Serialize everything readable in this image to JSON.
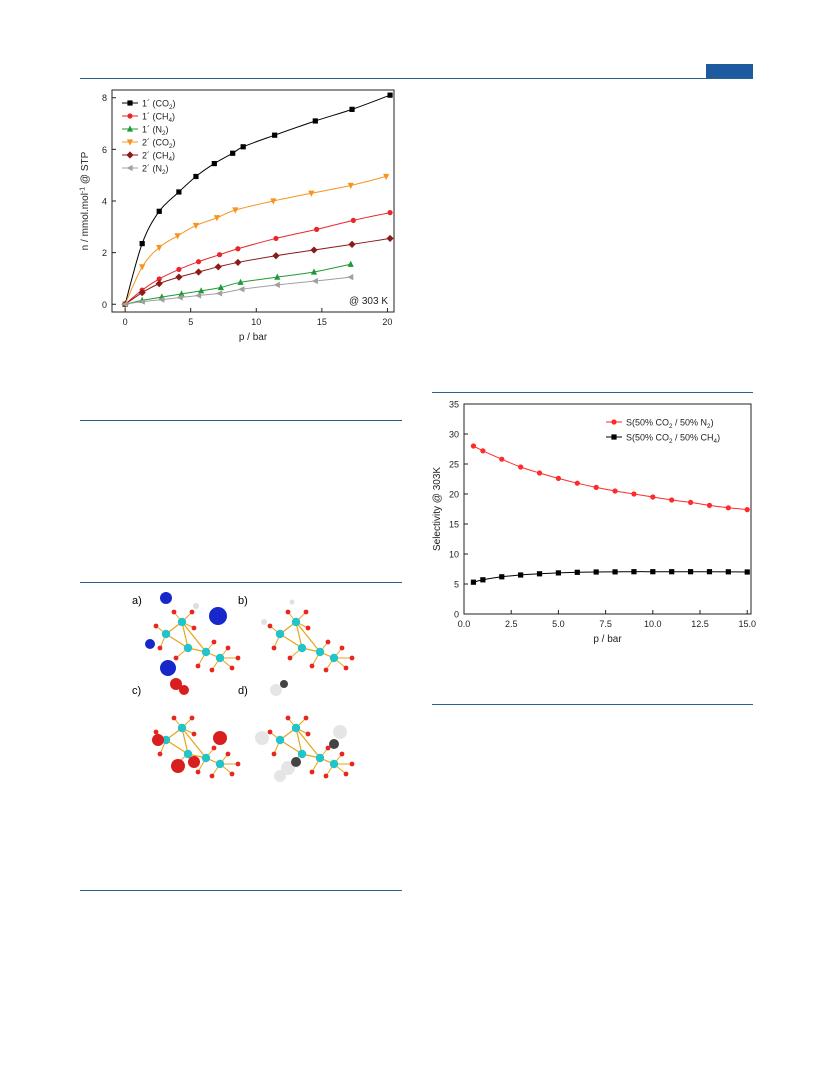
{
  "colors": {
    "rule": "#2f5f8f",
    "tab": "#1d5aa0"
  },
  "chart_data": [
    {
      "type": "line",
      "xlabel": "p / bar",
      "ylabel": "n / mmol.mol⁻¹ @ STP",
      "xlim": [
        -1,
        20.5
      ],
      "ylim": [
        -0.3,
        8.3
      ],
      "xticks": [
        0,
        5,
        10,
        15,
        20
      ],
      "yticks": [
        0,
        2,
        4,
        6,
        8
      ],
      "annotation": "@ 303 K",
      "legend_position": "top-left",
      "series": [
        {
          "name": "1´ (CO₂)",
          "color": "#000000",
          "marker": "square",
          "x": [
            0,
            1.3,
            2.6,
            4.1,
            5.4,
            6.8,
            8.2,
            9.0,
            11.4,
            14.5,
            17.3,
            20.2
          ],
          "y": [
            0,
            2.35,
            3.6,
            4.35,
            4.95,
            5.45,
            5.85,
            6.1,
            6.55,
            7.1,
            7.55,
            8.1
          ]
        },
        {
          "name": "1´ (CH₄)",
          "color": "#e8272a",
          "marker": "circle",
          "x": [
            0,
            1.3,
            2.6,
            4.1,
            5.6,
            7.2,
            8.6,
            11.5,
            14.6,
            17.4,
            20.2
          ],
          "y": [
            0,
            0.55,
            0.98,
            1.35,
            1.65,
            1.92,
            2.15,
            2.55,
            2.9,
            3.25,
            3.55
          ]
        },
        {
          "name": "1´ (N₂)",
          "color": "#1f9b34",
          "marker": "triangle-up",
          "x": [
            0,
            1.3,
            2.8,
            4.3,
            5.8,
            7.3,
            8.8,
            11.6,
            14.4,
            17.2
          ],
          "y": [
            0,
            0.15,
            0.28,
            0.4,
            0.52,
            0.65,
            0.85,
            1.05,
            1.25,
            1.55
          ]
        },
        {
          "name": "2´ (CO₂)",
          "color": "#f7941d",
          "marker": "triangle-down",
          "x": [
            0,
            1.3,
            2.6,
            4.0,
            5.4,
            7.0,
            8.4,
            11.3,
            14.2,
            17.2,
            19.9
          ],
          "y": [
            0,
            1.45,
            2.2,
            2.65,
            3.05,
            3.35,
            3.65,
            4.0,
            4.3,
            4.6,
            4.95
          ]
        },
        {
          "name": "2´ (CH₄)",
          "color": "#8b1a1a",
          "marker": "diamond",
          "x": [
            0,
            1.3,
            2.6,
            4.1,
            5.6,
            7.1,
            8.6,
            11.5,
            14.4,
            17.3,
            20.2
          ],
          "y": [
            0,
            0.45,
            0.8,
            1.05,
            1.25,
            1.45,
            1.62,
            1.88,
            2.1,
            2.32,
            2.55
          ]
        },
        {
          "name": "2´ (N₂)",
          "color": "#a0a0a0",
          "marker": "triangle-left",
          "x": [
            0,
            1.3,
            2.8,
            4.2,
            5.6,
            7.2,
            8.9,
            11.6,
            14.5,
            17.2
          ],
          "y": [
            0,
            0.1,
            0.18,
            0.26,
            0.34,
            0.42,
            0.58,
            0.75,
            0.9,
            1.05
          ]
        }
      ]
    },
    {
      "type": "line",
      "xlabel": "p / bar",
      "ylabel": "Selectivity @ 303K",
      "xlim": [
        0,
        15.2
      ],
      "ylim": [
        0,
        35
      ],
      "xticks": [
        0,
        2.5,
        5,
        7.5,
        10,
        12.5,
        15
      ],
      "xticklabels": [
        "0.0",
        "2.5",
        "5.0",
        "7.5",
        "10.0",
        "12.5",
        "15.0"
      ],
      "yticks": [
        0,
        5,
        10,
        15,
        20,
        25,
        30,
        35
      ],
      "legend_position": "top-right",
      "series": [
        {
          "name": "S(50% CO₂ / 50% N₂)",
          "color": "#ff2a2a",
          "marker": "circle",
          "x": [
            0.5,
            1,
            2,
            3,
            4,
            5,
            6,
            7,
            8,
            9,
            10,
            11,
            12,
            13,
            14,
            15
          ],
          "y": [
            28.0,
            27.2,
            25.8,
            24.5,
            23.5,
            22.6,
            21.8,
            21.1,
            20.5,
            20.0,
            19.5,
            19.0,
            18.6,
            18.1,
            17.7,
            17.4
          ]
        },
        {
          "name": "S(50% CO₂ / 50% CH₄)",
          "color": "#000000",
          "marker": "square",
          "x": [
            0.5,
            1,
            2,
            3,
            4,
            5,
            6,
            7,
            8,
            9,
            10,
            11,
            12,
            13,
            14,
            15
          ],
          "y": [
            5.3,
            5.7,
            6.2,
            6.5,
            6.7,
            6.85,
            6.95,
            7.0,
            7.02,
            7.05,
            7.05,
            7.05,
            7.05,
            7.05,
            7.03,
            7.0
          ]
        }
      ]
    }
  ],
  "figure_panels": [
    {
      "label": "a)",
      "guest": "N₂"
    },
    {
      "label": "b)",
      "guest": "none"
    },
    {
      "label": "c)",
      "guest": "CO₂"
    },
    {
      "label": "d)",
      "guest": "CH₄"
    }
  ]
}
